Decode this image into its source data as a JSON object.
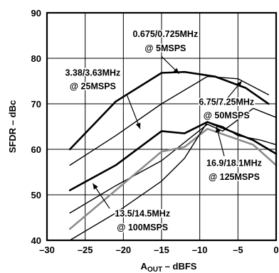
{
  "chart_data": {
    "type": "line",
    "xlabel": "A",
    "xlabel_sub": "OUT",
    "xlabel_rest": " – dBFS",
    "ylabel": "SFDR – dBc",
    "xlim": [
      -30,
      0
    ],
    "ylim": [
      40,
      90
    ],
    "xticks": [
      -30,
      -25,
      -20,
      -15,
      -10,
      -5,
      0
    ],
    "xtick_labels": [
      "–30",
      "–25",
      "–20",
      "–15",
      "–10",
      "–5",
      "0"
    ],
    "yticks": [
      40,
      50,
      60,
      70,
      80,
      90
    ],
    "ytick_labels": [
      "40",
      "50",
      "60",
      "70",
      "80",
      "90"
    ],
    "grid": true,
    "series": [
      {
        "color": "#000000",
        "stroke_width": 2.6,
        "x": [
          -27,
          -21,
          -15,
          -12,
          -8,
          -4,
          -1
        ],
        "y": [
          60,
          70.5,
          76.8,
          77,
          76,
          73.5,
          70
        ]
      },
      {
        "color": "#000000",
        "stroke_width": 1.4,
        "x": [
          -27,
          -21,
          -15,
          -9,
          -5,
          -1
        ],
        "y": [
          56.5,
          63,
          70,
          76,
          75.5,
          72
        ]
      },
      {
        "color": "#000000",
        "stroke_width": 1.4,
        "x": [
          -27,
          -21,
          -15,
          -9,
          -7,
          -3,
          0
        ],
        "y": [
          46,
          52,
          57.5,
          65.5,
          64,
          69,
          67
        ]
      },
      {
        "color": "#000000",
        "stroke_width": 2.6,
        "x": [
          -27,
          -21,
          -15,
          -12,
          -9,
          -3,
          0
        ],
        "y": [
          51,
          56.5,
          64,
          63.5,
          66,
          62,
          59
        ]
      },
      {
        "color": "#8c8c8c",
        "stroke_width": 2.6,
        "x": [
          -27,
          -21,
          -15,
          -12,
          -9,
          -3,
          0
        ],
        "y": [
          42.5,
          51,
          59.5,
          60.5,
          64.5,
          61,
          56.5
        ]
      },
      {
        "color": "#000000",
        "stroke_width": 1.4,
        "x": [
          -27,
          -21,
          -15,
          -12,
          -9,
          -7,
          -5,
          -2,
          0
        ],
        "y": [
          40,
          46,
          53,
          58,
          66,
          65,
          63,
          62,
          61
        ]
      }
    ],
    "annotations": [
      {
        "lines": [
          "0.675/0.725MHz",
          "@ 5MSPS"
        ],
        "text_x": -14.5,
        "text_y": [
          84.7,
          81.6
        ],
        "arrow": [
          [
            -15,
            80.4
          ],
          [
            -12.7,
            76.6
          ]
        ]
      },
      {
        "lines": [
          "3.38/3.63MHz",
          "@ 25MSPS"
        ],
        "text_x": -24,
        "text_y": [
          76.2,
          73.2
        ],
        "arrow": [
          [
            -19.5,
            71.8
          ],
          [
            -17.8,
            64.5
          ]
        ]
      },
      {
        "lines": [
          "6.75/7.25MHz",
          "@ 50MSPS"
        ],
        "text_x": -6.5,
        "text_y": [
          69.8,
          66.8
        ],
        "arrow": [
          [
            -6.5,
            71
          ],
          [
            -4.5,
            75
          ]
        ]
      },
      {
        "lines": [
          "16.9/18.1MHz",
          "@ 125MSPS"
        ],
        "text_x": -5.5,
        "text_y": [
          56.3,
          53.3
        ],
        "arrow": [
          [
            -6.8,
            58.5
          ],
          [
            -7.8,
            65
          ]
        ]
      },
      {
        "lines": [
          "13.5/14.5MHz",
          "@ 100MSPS"
        ],
        "text_x": -17.5,
        "text_y": [
          45.2,
          42.2
        ],
        "arrow": [
          [
            -21.8,
            47
          ],
          [
            -24,
            52.5
          ]
        ]
      }
    ]
  }
}
